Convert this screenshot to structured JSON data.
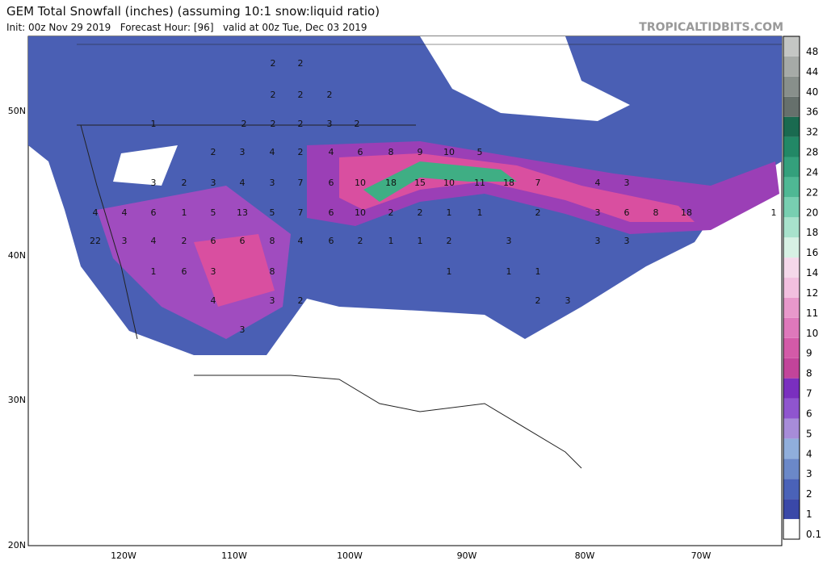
{
  "header": {
    "title": "GEM Total Snowfall (inches) (assuming 10:1 snow:liquid ratio)",
    "subtitle": "Init: 00z Nov 29 2019   Forecast Hour: [96]   valid at 00z Tue, Dec 03 2019",
    "watermark": "TROPICALTIDBITS.COM"
  },
  "lat_labels": [
    "50N",
    "40N",
    "30N",
    "20N"
  ],
  "lon_labels": [
    "120W",
    "110W",
    "100W",
    "90W",
    "80W",
    "70W"
  ],
  "colorbar": {
    "labels": [
      "0.1",
      "1",
      "2",
      "3",
      "4",
      "5",
      "6",
      "7",
      "8",
      "9",
      "10",
      "11",
      "12",
      "14",
      "16",
      "18",
      "20",
      "22",
      "24",
      "28",
      "32",
      "36",
      "40",
      "44",
      "48"
    ]
  },
  "map_labels": [
    "2",
    "2",
    "2",
    "2",
    "2",
    "1",
    "2",
    "2",
    "2",
    "3",
    "2",
    "2",
    "3",
    "4",
    "2",
    "4",
    "6",
    "8",
    "9",
    "10",
    "5",
    "3",
    "2",
    "3",
    "4",
    "3",
    "7",
    "6",
    "10",
    "18",
    "15",
    "10",
    "11",
    "18",
    "7",
    "4",
    "3",
    "4",
    "4",
    "6",
    "1",
    "5",
    "13",
    "5",
    "7",
    "6",
    "10",
    "2",
    "2",
    "1",
    "1",
    "2",
    "3",
    "6",
    "8",
    "18",
    "1",
    "22",
    "3",
    "4",
    "2",
    "6",
    "6",
    "8",
    "4",
    "6",
    "2",
    "1",
    "1",
    "2",
    "3",
    "3",
    "3",
    "1",
    "6",
    "3",
    "8",
    "1",
    "1",
    "1",
    "4",
    "3",
    "2",
    "2",
    "3",
    "3"
  ]
}
